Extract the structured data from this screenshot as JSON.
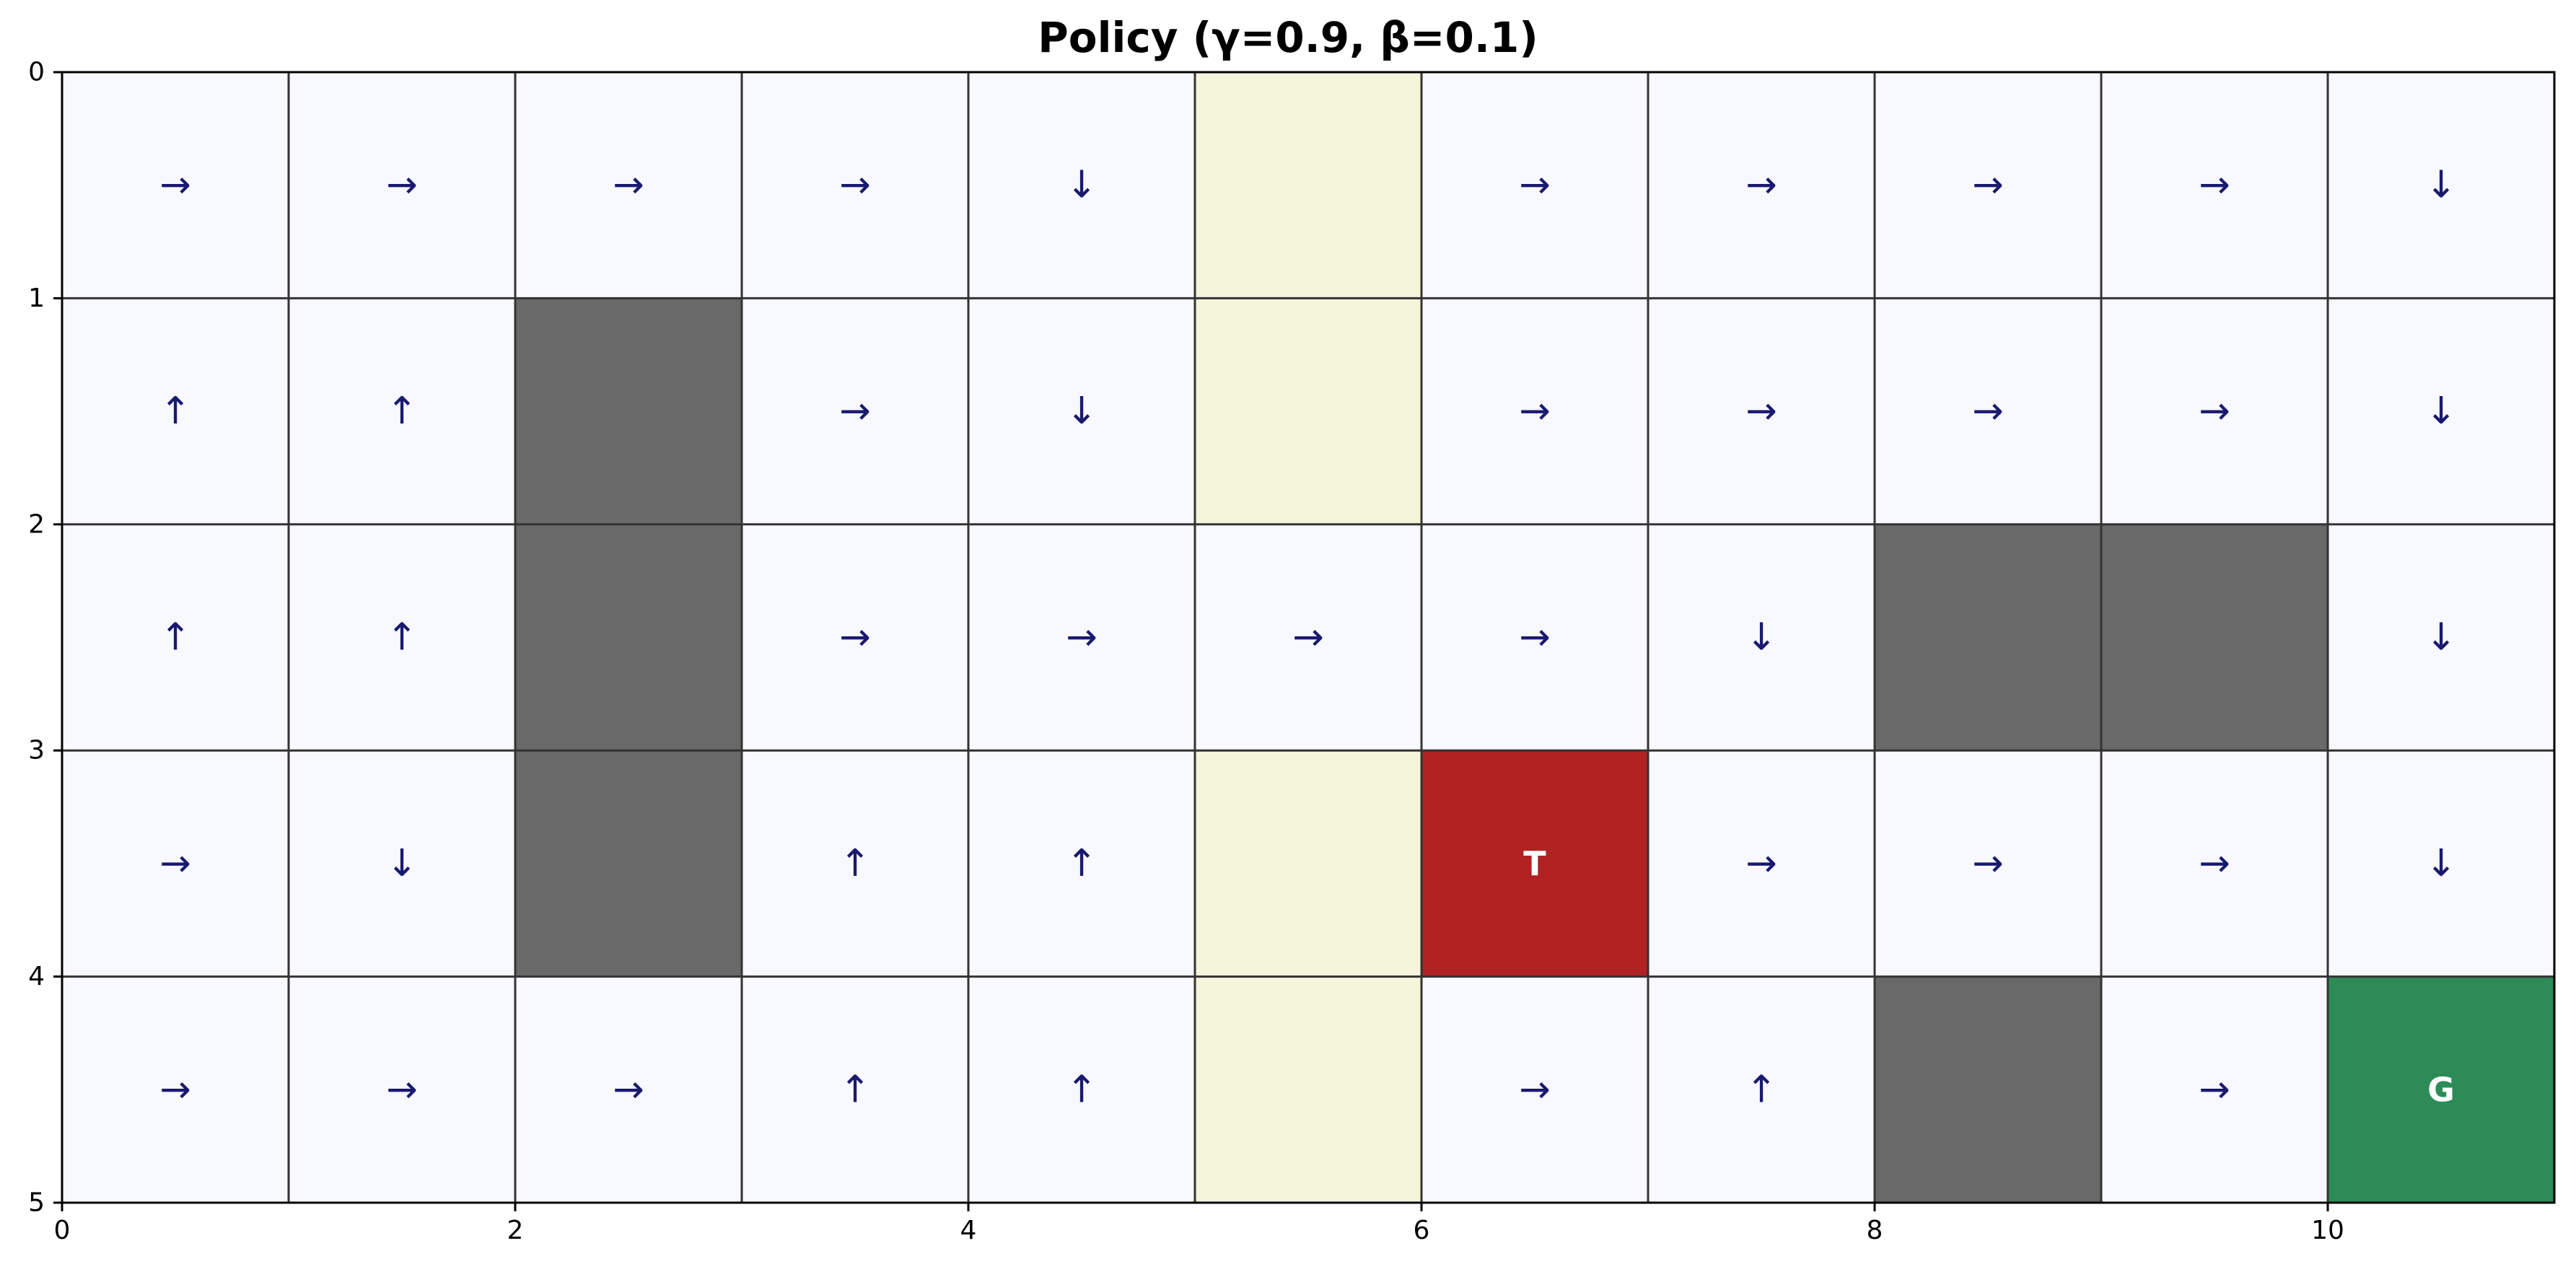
{
  "chart_data": {
    "type": "heatmap",
    "title": "Policy (γ=0.9, β=0.1)",
    "rows": 5,
    "cols": 11,
    "xlim": [
      0,
      11
    ],
    "ylim": [
      5,
      0
    ],
    "x_ticks": [
      "0",
      "2",
      "4",
      "6",
      "8",
      "10"
    ],
    "y_ticks": [
      "0",
      "1",
      "2",
      "3",
      "4",
      "5"
    ],
    "grid": true,
    "legend": "none",
    "colors": {
      "empty": "#f8f8ff",
      "wall": "#696969",
      "sand": "#f5f5dc",
      "trap": "#b22222",
      "goal": "#2e8b57",
      "arrow": "#191970",
      "grid_line": "#333333"
    },
    "cell_types": [
      [
        "empty",
        "empty",
        "empty",
        "empty",
        "empty",
        "sand",
        "empty",
        "empty",
        "empty",
        "empty",
        "empty"
      ],
      [
        "empty",
        "empty",
        "wall",
        "empty",
        "empty",
        "sand",
        "empty",
        "empty",
        "empty",
        "empty",
        "empty"
      ],
      [
        "empty",
        "empty",
        "wall",
        "empty",
        "empty",
        "empty",
        "empty",
        "empty",
        "wall",
        "wall",
        "empty"
      ],
      [
        "empty",
        "empty",
        "wall",
        "empty",
        "empty",
        "sand",
        "trap",
        "empty",
        "empty",
        "empty",
        "empty"
      ],
      [
        "empty",
        "empty",
        "empty",
        "empty",
        "empty",
        "sand",
        "empty",
        "empty",
        "wall",
        "empty",
        "goal"
      ]
    ],
    "labels": [
      [
        "→",
        "→",
        "→",
        "→",
        "↓",
        "",
        "→",
        "→",
        "→",
        "→",
        "↓"
      ],
      [
        "↑",
        "↑",
        "",
        "→",
        "↓",
        "",
        "→",
        "→",
        "→",
        "→",
        "↓"
      ],
      [
        "↑",
        "↑",
        "",
        "→",
        "→",
        "→",
        "→",
        "↓",
        "",
        "",
        "↓"
      ],
      [
        "→",
        "↓",
        "",
        "↑",
        "↑",
        "",
        "T",
        "→",
        "→",
        "→",
        "↓"
      ],
      [
        "→",
        "→",
        "→",
        "↑",
        "↑",
        "",
        "→",
        "↑",
        "",
        "→",
        "G"
      ]
    ]
  }
}
